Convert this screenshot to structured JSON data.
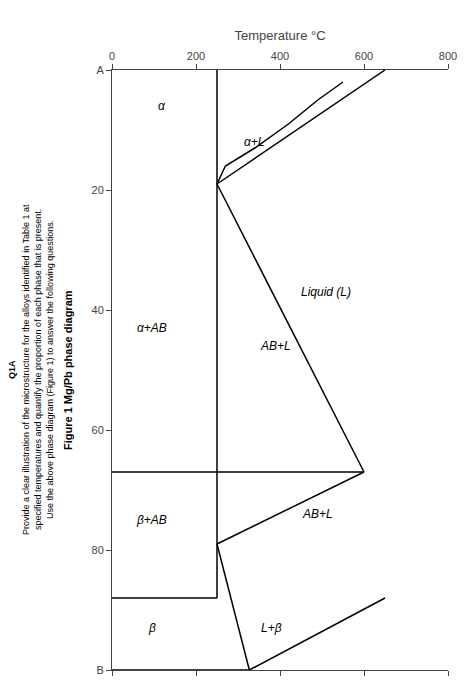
{
  "chart_data": {
    "type": "line",
    "title": "Figure 1 Mg/Pb phase diagram",
    "x_label": "Temperature °C",
    "color": "#000000",
    "xlim": [
      0,
      800
    ],
    "xticks": [
      0,
      200,
      400,
      600,
      800
    ],
    "ylim": [
      100,
      0
    ],
    "yticks": [
      {
        "value": 0,
        "label": "A"
      },
      20,
      40,
      60,
      80,
      {
        "value": 100,
        "label": "B"
      }
    ],
    "grid": false,
    "series": [
      {
        "x": [
          650,
          250
        ],
        "values": [
          0,
          19
        ]
      },
      {
        "x": [
          550,
          490,
          420,
          340,
          270,
          250
        ],
        "values": [
          2,
          5,
          9,
          13,
          16,
          19
        ]
      },
      {
        "x": [
          250,
          250
        ],
        "values": [
          0,
          67
        ]
      },
      {
        "x": [
          0,
          600
        ],
        "values": [
          67,
          67
        ]
      },
      {
        "x": [
          250,
          600
        ],
        "values": [
          19,
          67
        ]
      },
      {
        "x": [
          600,
          250
        ],
        "values": [
          67,
          79
        ]
      },
      {
        "x": [
          250,
          250
        ],
        "values": [
          67,
          88
        ]
      },
      {
        "x": [
          0,
          250
        ],
        "values": [
          88,
          88
        ]
      },
      {
        "x": [
          327,
          250
        ],
        "values": [
          100,
          79
        ]
      },
      {
        "x": [
          327,
          650
        ],
        "values": [
          100,
          88
        ]
      },
      {
        "x": [
          0,
          327
        ],
        "values": [
          100,
          100
        ]
      }
    ],
    "annotations": [
      {
        "text": "α",
        "x": 120,
        "y": 6
      },
      {
        "text": "α+L",
        "x": 340,
        "y": 12
      },
      {
        "text": "α+AB",
        "x": 95,
        "y": 43
      },
      {
        "text": "Liquid (L)",
        "x": 510,
        "y": 37
      },
      {
        "text": "AB+L",
        "x": 390,
        "y": 46
      },
      {
        "text": "AB+L",
        "x": 490,
        "y": 74
      },
      {
        "text": "β+AB",
        "x": 95,
        "y": 75
      },
      {
        "text": "β",
        "x": 95,
        "y": 93
      },
      {
        "text": "L+β",
        "x": 380,
        "y": 93
      },
      {
        "text": "Q1A"
      },
      {
        "text": "Provide a clear illustration of the microstructure for the alloys identified in Table 1 at"
      },
      {
        "text": "specified temperatures and quantify the proportion of each phase that is present."
      },
      {
        "text": "Use the above phase diagram (Figure 1) to answer the following questions."
      }
    ]
  }
}
